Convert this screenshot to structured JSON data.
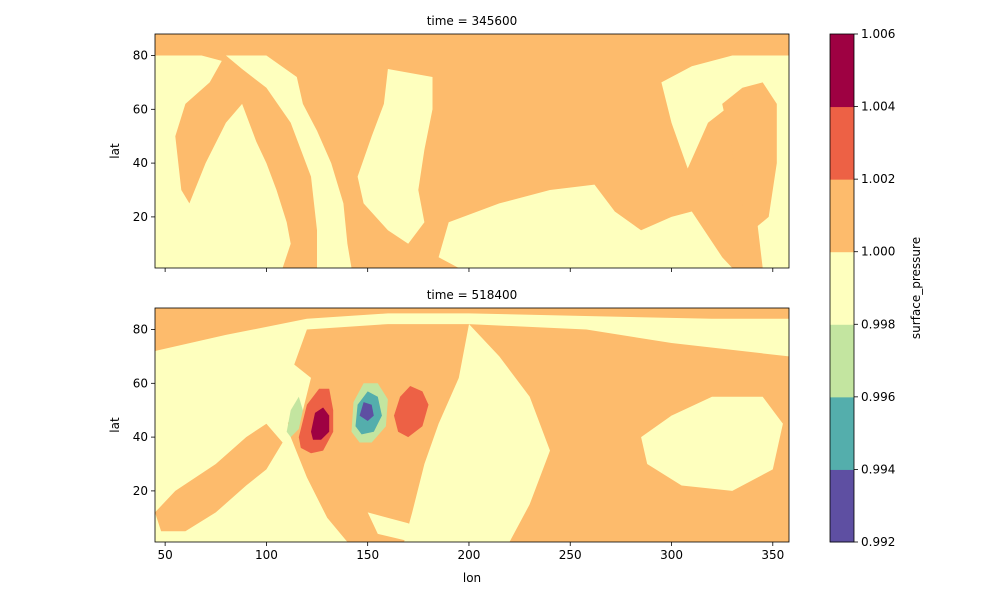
{
  "chart_data": {
    "type": "heatmap",
    "colors": {
      "band_0": "#5e4fa2",
      "band_1": "#54aeac",
      "band_2": "#c3e5a0",
      "band_3": "#feffbe",
      "band_4": "#fdbb6c",
      "band_5": "#ed6145",
      "band_6": "#9e0142"
    },
    "xlabel": "lon",
    "xlim": [
      45,
      358
    ],
    "xticks": [
      50,
      100,
      150,
      200,
      250,
      300,
      350
    ],
    "colorbar": {
      "label": "surface_pressure",
      "levels": [
        0.992,
        0.994,
        0.996,
        0.998,
        1.0,
        1.002,
        1.004,
        1.006
      ],
      "tick_labels": [
        "0.992",
        "0.994",
        "0.996",
        "0.998",
        "1.000",
        "1.002",
        "1.004",
        "1.006"
      ]
    },
    "panels": [
      {
        "title": "time = 345600",
        "ylabel": "lat",
        "ylim": [
          1,
          88
        ],
        "yticks": [
          20,
          40,
          60,
          80
        ],
        "background_level": 1.001,
        "features": [
          {
            "name": "low-band-west",
            "level": 0.999,
            "points": [
              [
                45,
                80
              ],
              [
                68,
                80
              ],
              [
                78,
                78
              ],
              [
                72,
                70
              ],
              [
                60,
                62
              ],
              [
                55,
                50
              ],
              [
                58,
                30
              ],
              [
                62,
                25
              ],
              [
                70,
                40
              ],
              [
                80,
                55
              ],
              [
                88,
                62
              ],
              [
                95,
                48
              ],
              [
                100,
                40
              ],
              [
                105,
                30
              ],
              [
                110,
                18
              ],
              [
                112,
                10
              ],
              [
                108,
                1
              ],
              [
                45,
                1
              ]
            ]
          },
          {
            "name": "low-ridge-north",
            "level": 0.999,
            "points": [
              [
                80,
                80
              ],
              [
                100,
                80
              ],
              [
                115,
                72
              ],
              [
                118,
                62
              ],
              [
                125,
                52
              ],
              [
                132,
                40
              ],
              [
                138,
                25
              ],
              [
                140,
                10
              ],
              [
                142,
                1
              ],
              [
                125,
                1
              ],
              [
                125,
                15
              ],
              [
                122,
                35
              ],
              [
                112,
                55
              ],
              [
                100,
                68
              ],
              [
                88,
                75
              ]
            ]
          },
          {
            "name": "low-tongue-center",
            "level": 0.999,
            "points": [
              [
                160,
                75
              ],
              [
                182,
                72
              ],
              [
                182,
                60
              ],
              [
                178,
                45
              ],
              [
                175,
                30
              ],
              [
                178,
                18
              ],
              [
                170,
                10
              ],
              [
                160,
                15
              ],
              [
                148,
                25
              ],
              [
                145,
                35
              ],
              [
                152,
                50
              ],
              [
                158,
                62
              ]
            ]
          },
          {
            "name": "low-band-south",
            "level": 0.999,
            "points": [
              [
                190,
                18
              ],
              [
                215,
                25
              ],
              [
                240,
                30
              ],
              [
                262,
                32
              ],
              [
                272,
                22
              ],
              [
                285,
                15
              ],
              [
                300,
                20
              ],
              [
                310,
                22
              ],
              [
                325,
                5
              ],
              [
                330,
                1
              ],
              [
                195,
                1
              ],
              [
                185,
                5
              ]
            ]
          },
          {
            "name": "low-region-east",
            "level": 0.999,
            "points": [
              [
                295,
                70
              ],
              [
                310,
                76
              ],
              [
                330,
                80
              ],
              [
                358,
                80
              ],
              [
                358,
                1
              ],
              [
                345,
                1
              ],
              [
                342,
                20
              ],
              [
                338,
                45
              ],
              [
                330,
                62
              ],
              [
                318,
                55
              ],
              [
                308,
                38
              ],
              [
                300,
                55
              ]
            ]
          },
          {
            "name": "high-patch-east",
            "level": 1.001,
            "points": [
              [
                325,
                62
              ],
              [
                335,
                68
              ],
              [
                345,
                70
              ],
              [
                352,
                62
              ],
              [
                352,
                40
              ],
              [
                348,
                20
              ],
              [
                340,
                15
              ],
              [
                333,
                28
              ],
              [
                330,
                45
              ]
            ]
          }
        ]
      },
      {
        "title": "time = 518400",
        "ylabel": "lat",
        "ylim": [
          1,
          88
        ],
        "yticks": [
          20,
          40,
          60,
          80
        ],
        "background_level": 0.999,
        "features": [
          {
            "name": "high-cap-north",
            "level": 1.001,
            "points": [
              [
                45,
                72
              ],
              [
                80,
                78
              ],
              [
                120,
                84
              ],
              [
                160,
                86
              ],
              [
                200,
                86
              ],
              [
                260,
                85
              ],
              [
                320,
                84
              ],
              [
                358,
                84
              ],
              [
                358,
                88
              ],
              [
                45,
                88
              ]
            ]
          },
          {
            "name": "high-ridge-center",
            "level": 1.001,
            "points": [
              [
                120,
                80
              ],
              [
                160,
                82
              ],
              [
                200,
                82
              ],
              [
                195,
                62
              ],
              [
                185,
                45
              ],
              [
                178,
                30
              ],
              [
                172,
                12
              ],
              [
                168,
                1
              ],
              [
                140,
                1
              ],
              [
                130,
                10
              ],
              [
                120,
                25
              ],
              [
                112,
                40
              ],
              [
                108,
                55
              ]
            ]
          },
          {
            "name": "high-basin-east",
            "level": 1.001,
            "points": [
              [
                200,
                82
              ],
              [
                258,
                80
              ],
              [
                300,
                75
              ],
              [
                358,
                70
              ],
              [
                358,
                1
              ],
              [
                220,
                1
              ],
              [
                230,
                15
              ],
              [
                240,
                35
              ],
              [
                230,
                55
              ],
              [
                215,
                70
              ]
            ]
          },
          {
            "name": "high-band-southwest",
            "level": 1.001,
            "points": [
              [
                55,
                20
              ],
              [
                75,
                30
              ],
              [
                90,
                40
              ],
              [
                100,
                45
              ],
              [
                108,
                38
              ],
              [
                100,
                28
              ],
              [
                90,
                22
              ],
              [
                75,
                12
              ],
              [
                60,
                5
              ],
              [
                48,
                5
              ],
              [
                45,
                12
              ]
            ]
          },
          {
            "name": "low-patch-east",
            "level": 0.999,
            "points": [
              [
                285,
                40
              ],
              [
                300,
                48
              ],
              [
                320,
                55
              ],
              [
                345,
                55
              ],
              [
                355,
                45
              ],
              [
                350,
                28
              ],
              [
                330,
                20
              ],
              [
                305,
                22
              ],
              [
                288,
                30
              ]
            ]
          },
          {
            "name": "low-streak-south",
            "level": 0.999,
            "points": [
              [
                150,
                12
              ],
              [
                170,
                8
              ],
              [
                180,
                3
              ],
              [
                172,
                1
              ],
              [
                155,
                4
              ]
            ]
          },
          {
            "name": "low-tongue-west",
            "level": 0.999,
            "points": [
              [
                100,
                60
              ],
              [
                112,
                68
              ],
              [
                122,
                62
              ],
              [
                118,
                50
              ],
              [
                110,
                45
              ],
              [
                102,
                52
              ]
            ]
          },
          {
            "name": "high-anomaly-1",
            "level": 1.003,
            "points": [
              [
                116,
                40
              ],
              [
                120,
                52
              ],
              [
                126,
                58
              ],
              [
                131,
                58
              ],
              [
                133,
                50
              ],
              [
                133,
                42
              ],
              [
                128,
                35
              ],
              [
                122,
                34
              ],
              [
                117,
                36
              ]
            ]
          },
          {
            "name": "max-core",
            "level": 1.005,
            "points": [
              [
                122,
                42
              ],
              [
                124,
                49
              ],
              [
                128,
                51
              ],
              [
                131,
                48
              ],
              [
                131,
                42
              ],
              [
                127,
                39
              ],
              [
                123,
                39
              ]
            ]
          },
          {
            "name": "low-anomaly-ring",
            "level": 0.997,
            "points": [
              [
                142,
                42
              ],
              [
                143,
                53
              ],
              [
                148,
                60
              ],
              [
                155,
                60
              ],
              [
                160,
                54
              ],
              [
                159,
                44
              ],
              [
                152,
                38
              ],
              [
                146,
                38
              ]
            ]
          },
          {
            "name": "low-anomaly-inner",
            "level": 0.995,
            "points": [
              [
                144,
                44
              ],
              [
                145,
                52
              ],
              [
                150,
                57
              ],
              [
                155,
                55
              ],
              [
                157,
                48
              ],
              [
                153,
                42
              ],
              [
                147,
                41
              ]
            ]
          },
          {
            "name": "min-core",
            "level": 0.993,
            "points": [
              [
                146,
                48
              ],
              [
                148,
                53
              ],
              [
                152,
                52
              ],
              [
                153,
                48
              ],
              [
                150,
                46
              ]
            ]
          },
          {
            "name": "faint-low-west",
            "level": 0.997,
            "points": [
              [
                110,
                42
              ],
              [
                112,
                50
              ],
              [
                116,
                55
              ],
              [
                118,
                50
              ],
              [
                116,
                43
              ],
              [
                112,
                40
              ]
            ]
          },
          {
            "name": "high-anomaly-2",
            "level": 1.003,
            "points": [
              [
                163,
                48
              ],
              [
                166,
                55
              ],
              [
                171,
                59
              ],
              [
                177,
                57
              ],
              [
                180,
                52
              ],
              [
                177,
                44
              ],
              [
                170,
                40
              ],
              [
                165,
                42
              ]
            ]
          }
        ]
      }
    ]
  }
}
